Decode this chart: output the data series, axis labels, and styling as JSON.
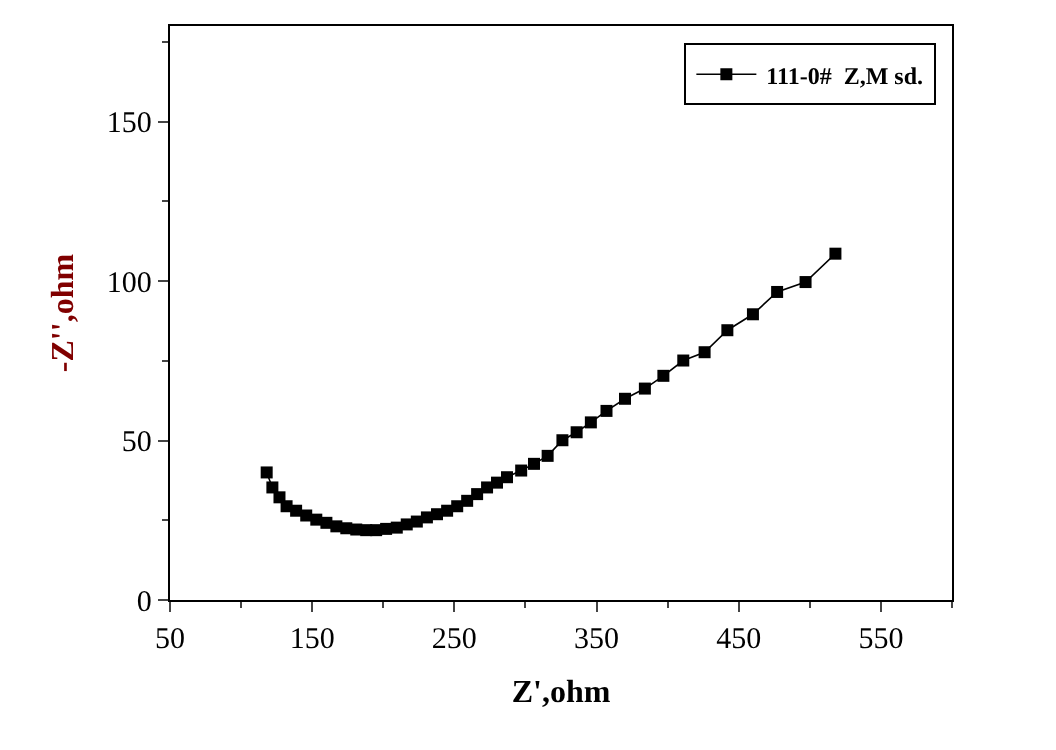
{
  "chart_data": {
    "type": "line",
    "xlabel": "Z',ohm",
    "ylabel": "-Z'',ohm",
    "x": [
      118,
      122,
      127,
      132,
      138.7,
      145.8,
      152.9,
      160,
      167,
      174,
      181,
      188,
      195,
      202,
      209.5,
      216.5,
      223.6,
      230.7,
      237.8,
      244.9,
      252,
      259,
      266,
      273,
      280,
      287,
      297,
      306,
      315.6,
      326,
      336,
      346,
      357,
      370,
      384,
      397,
      411,
      426,
      442,
      460,
      477,
      497,
      518
    ],
    "series": [
      {
        "name": "111-0#  Z,M sd.",
        "color": "#000000",
        "values": [
          40,
          35.3,
          32.2,
          29.4,
          28,
          26.5,
          25.2,
          24.2,
          23.1,
          22.5,
          22.1,
          21.9,
          21.9,
          22.3,
          22.7,
          23.7,
          24.6,
          25.9,
          26.9,
          28,
          29.4,
          31.1,
          33.2,
          35.3,
          36.8,
          38.5,
          40.6,
          42.7,
          45.2,
          50.1,
          52.6,
          55.7,
          59.3,
          63.1,
          66.3,
          70.3,
          75.1,
          77.7,
          84.6,
          89.6,
          96.6,
          99.7,
          108.6
        ]
      }
    ],
    "xlim": [
      50,
      600
    ],
    "xticks": [
      50,
      150,
      250,
      350,
      450,
      550
    ],
    "ylim": [
      0,
      180
    ],
    "yticks": [
      0,
      50,
      100,
      150
    ],
    "grid": false,
    "legend": "top right",
    "marker": "square",
    "line_style": "solid"
  }
}
